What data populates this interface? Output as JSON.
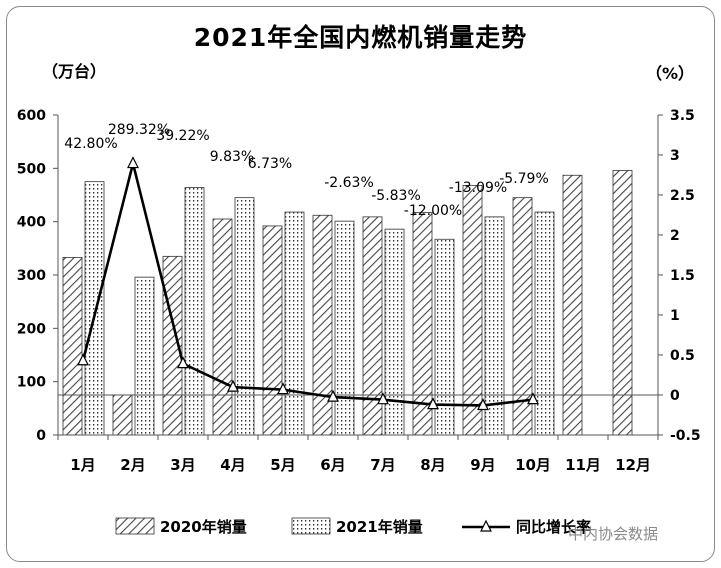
{
  "chart_data": {
    "type": "bar",
    "title": "2021年全国内燃机销量走势",
    "y_left_unit": "（万台）",
    "y_right_unit": "（%）",
    "categories": [
      "1月",
      "2月",
      "3月",
      "4月",
      "5月",
      "6月",
      "7月",
      "8月",
      "9月",
      "10月",
      "11月",
      "12月"
    ],
    "series": [
      {
        "name": "2020年销量",
        "values": [
          333,
          75,
          335,
          405,
          392,
          412,
          409,
          417,
          468,
          445,
          487,
          496
        ]
      },
      {
        "name": "2021年销量",
        "values": [
          475,
          296,
          464,
          445,
          418,
          401,
          386,
          367,
          409,
          418,
          null,
          null
        ]
      },
      {
        "name": "同比增长率",
        "values": [
          42.8,
          289.32,
          39.22,
          9.83,
          6.73,
          -2.63,
          -5.83,
          -12.0,
          -13.09,
          -5.79,
          null,
          null
        ]
      }
    ],
    "data_labels": [
      "42.80%",
      "289.32%",
      "39.22%",
      "9.83%",
      "6.73%",
      "-2.63%",
      "-5.83%",
      "-12.00%",
      "-13.09%",
      "-5.79%"
    ],
    "y_left_ticks": [
      "0",
      "100",
      "200",
      "300",
      "400",
      "500",
      "600"
    ],
    "y_right_ticks": [
      "-0.5",
      "0",
      "0.5",
      "1",
      "1.5",
      "2",
      "2.5",
      "3",
      "3.5"
    ],
    "ylim_left": [
      0,
      600
    ],
    "ylim_right": [
      -0.5,
      3.5
    ],
    "grid": false,
    "legend_position": "bottom",
    "colors": {
      "line": "#000000",
      "bar_stroke": "#333333",
      "axis": "#555555"
    }
  },
  "watermark": "中内协会数据"
}
